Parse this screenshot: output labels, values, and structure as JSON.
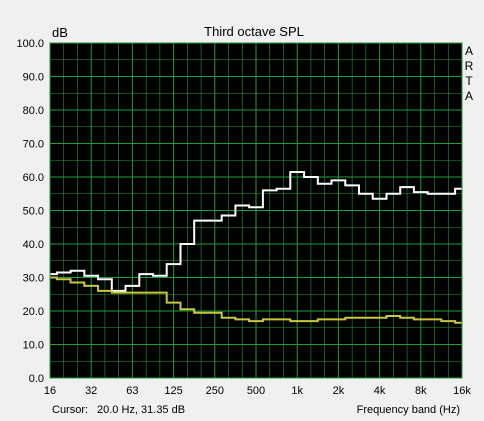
{
  "window": {
    "title": "Third octave SPL",
    "brand": "ARTA"
  },
  "status": {
    "cursor_label": "Cursor:",
    "cursor_value": "20.0 Hz, 31.35 dB",
    "xlabel": "Frequency band (Hz)"
  },
  "colors": {
    "background": "#f0f0f0",
    "plot_bg": "#000000",
    "grid": "#1f9c3b",
    "series_white": "#ffffff",
    "series_yellow": "#c8c83c"
  },
  "chart_data": {
    "type": "line",
    "title": "Third octave SPL",
    "ylabel": "dB",
    "xlabel": "Frequency band (Hz)",
    "ylim": [
      0,
      100
    ],
    "grid": true,
    "x_scale": "log",
    "yticks": [
      "0.0",
      "10.0",
      "20.0",
      "30.0",
      "40.0",
      "50.0",
      "60.0",
      "70.0",
      "80.0",
      "90.0",
      "100.0"
    ],
    "xticks": [
      "16",
      "32",
      "63",
      "125",
      "250",
      "500",
      "1k",
      "2k",
      "4k",
      "8k",
      "16k"
    ],
    "bands": [
      "16",
      "20",
      "25",
      "31.5",
      "40",
      "50",
      "63",
      "80",
      "100",
      "125",
      "160",
      "200",
      "250",
      "315",
      "400",
      "500",
      "630",
      "800",
      "1k",
      "1.25k",
      "1.6k",
      "2k",
      "2.5k",
      "3.15k",
      "4k",
      "5k",
      "6.3k",
      "8k",
      "10k",
      "12.5k",
      "16k"
    ],
    "series": [
      {
        "color": "#ffffff",
        "values": [
          31,
          31.5,
          32,
          30.5,
          29.5,
          26,
          27.5,
          31,
          30.5,
          34,
          40,
          47,
          47,
          48.5,
          51.5,
          51,
          56,
          56.5,
          61.5,
          60,
          58,
          59,
          57.5,
          55,
          53.5,
          55,
          57,
          55.5,
          55,
          55,
          56.5
        ]
      },
      {
        "color": "#c8c83c",
        "values": [
          30,
          29.5,
          28.5,
          27.5,
          26,
          25.5,
          25.5,
          25.5,
          25.5,
          22.5,
          20.5,
          19.5,
          19.5,
          18,
          17.5,
          17,
          17.5,
          17.5,
          17,
          17,
          17.5,
          17.5,
          18,
          18,
          18,
          18.5,
          18,
          17.5,
          17.5,
          17,
          16.5
        ]
      }
    ]
  }
}
